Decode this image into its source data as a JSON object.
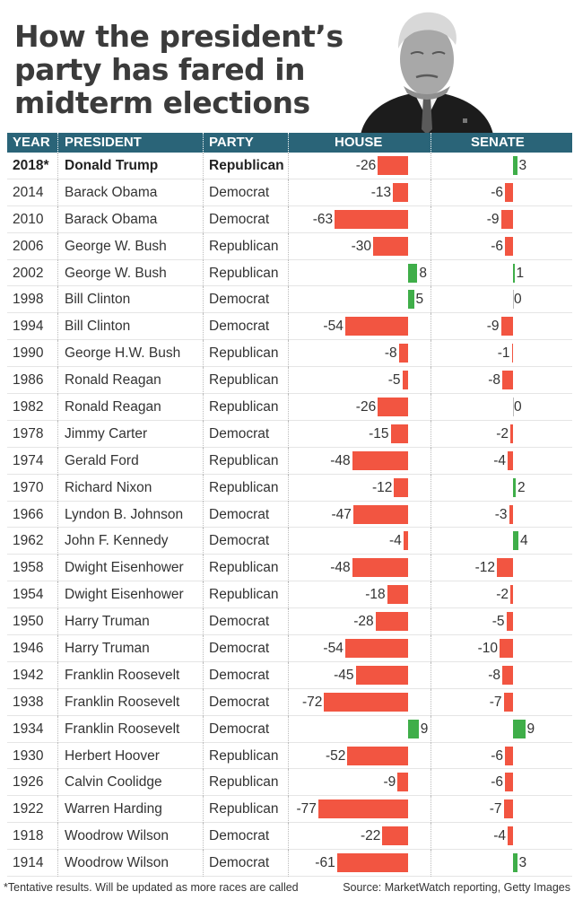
{
  "title": "How the president’s party has fared in midterm elections",
  "headers": {
    "year": "YEAR",
    "president": "PRESIDENT",
    "party": "PARTY",
    "house": "HOUSE",
    "senate": "SENATE"
  },
  "footnote": "*Tentative results. Will be updated as more races are called",
  "source": "Source: MarketWatch reporting, Getty Images",
  "colors": {
    "loss": "#f25541",
    "gain": "#3fae49",
    "header": "#2a6478"
  },
  "chart_data": {
    "type": "bar",
    "title": "How the president’s party has fared in midterm elections",
    "series": [
      {
        "name": "HOUSE",
        "xlim": [
          -80,
          10
        ]
      },
      {
        "name": "SENATE",
        "xlim": [
          -12,
          10
        ]
      }
    ],
    "rows": [
      {
        "year": "2018*",
        "president": "Donald Trump",
        "party": "Republican",
        "house": -26,
        "senate": 3
      },
      {
        "year": "2014",
        "president": "Barack Obama",
        "party": "Democrat",
        "house": -13,
        "senate": -6
      },
      {
        "year": "2010",
        "president": "Barack Obama",
        "party": "Democrat",
        "house": -63,
        "senate": -9
      },
      {
        "year": "2006",
        "president": "George W. Bush",
        "party": "Republican",
        "house": -30,
        "senate": -6
      },
      {
        "year": "2002",
        "president": "George W. Bush",
        "party": "Republican",
        "house": 8,
        "senate": 1
      },
      {
        "year": "1998",
        "president": "Bill Clinton",
        "party": "Democrat",
        "house": 5,
        "senate": 0
      },
      {
        "year": "1994",
        "president": "Bill Clinton",
        "party": "Democrat",
        "house": -54,
        "senate": -9
      },
      {
        "year": "1990",
        "president": "George H.W. Bush",
        "party": "Republican",
        "house": -8,
        "senate": -1
      },
      {
        "year": "1986",
        "president": "Ronald Reagan",
        "party": "Republican",
        "house": -5,
        "senate": -8
      },
      {
        "year": "1982",
        "president": "Ronald Reagan",
        "party": "Republican",
        "house": -26,
        "senate": 0
      },
      {
        "year": "1978",
        "president": "Jimmy Carter",
        "party": "Democrat",
        "house": -15,
        "senate": -2
      },
      {
        "year": "1974",
        "president": "Gerald Ford",
        "party": "Republican",
        "house": -48,
        "senate": -4
      },
      {
        "year": "1970",
        "president": "Richard Nixon",
        "party": "Republican",
        "house": -12,
        "senate": 2
      },
      {
        "year": "1966",
        "president": "Lyndon B. Johnson",
        "party": "Democrat",
        "house": -47,
        "senate": -3
      },
      {
        "year": "1962",
        "president": "John F. Kennedy",
        "party": "Democrat",
        "house": -4,
        "senate": 4
      },
      {
        "year": "1958",
        "president": "Dwight Eisenhower",
        "party": "Republican",
        "house": -48,
        "senate": -12
      },
      {
        "year": "1954",
        "president": "Dwight Eisenhower",
        "party": "Republican",
        "house": -18,
        "senate": -2
      },
      {
        "year": "1950",
        "president": "Harry Truman",
        "party": "Democrat",
        "house": -28,
        "senate": -5
      },
      {
        "year": "1946",
        "president": "Harry Truman",
        "party": "Democrat",
        "house": -54,
        "senate": -10
      },
      {
        "year": "1942",
        "president": "Franklin Roosevelt",
        "party": "Democrat",
        "house": -45,
        "senate": -8
      },
      {
        "year": "1938",
        "president": "Franklin Roosevelt",
        "party": "Democrat",
        "house": -72,
        "senate": -7
      },
      {
        "year": "1934",
        "president": "Franklin Roosevelt",
        "party": "Democrat",
        "house": 9,
        "senate": 9
      },
      {
        "year": "1930",
        "president": "Herbert Hoover",
        "party": "Republican",
        "house": -52,
        "senate": -6
      },
      {
        "year": "1926",
        "president": "Calvin Coolidge",
        "party": "Republican",
        "house": -9,
        "senate": -6
      },
      {
        "year": "1922",
        "president": "Warren Harding",
        "party": "Republican",
        "house": -77,
        "senate": -7
      },
      {
        "year": "1918",
        "president": "Woodrow Wilson",
        "party": "Democrat",
        "house": -22,
        "senate": -4
      },
      {
        "year": "1914",
        "president": "Woodrow Wilson",
        "party": "Democrat",
        "house": -61,
        "senate": 3
      }
    ]
  }
}
